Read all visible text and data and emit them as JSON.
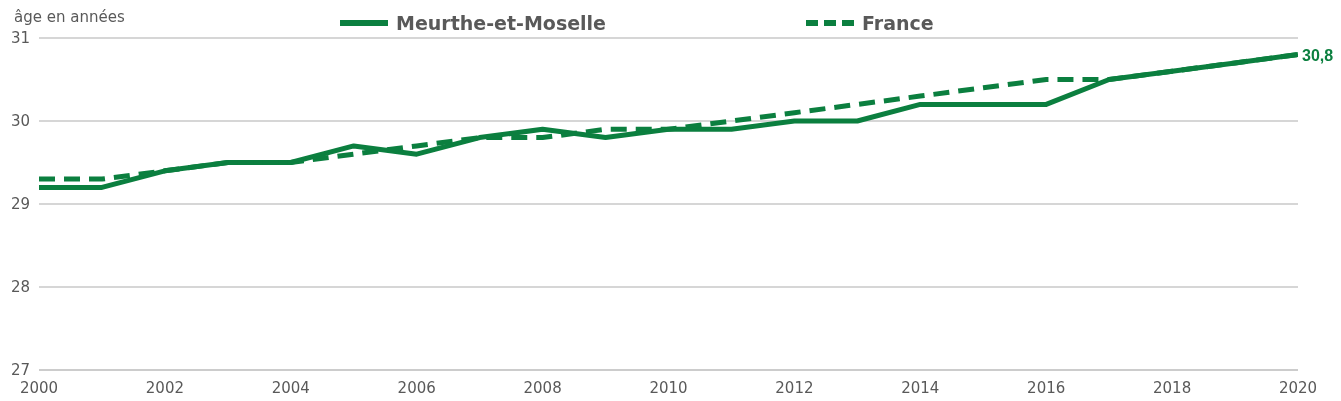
{
  "chart_data": {
    "type": "line",
    "ylabel": "âge en années",
    "x": [
      2000,
      2001,
      2002,
      2003,
      2004,
      2005,
      2006,
      2007,
      2008,
      2009,
      2010,
      2011,
      2012,
      2013,
      2014,
      2015,
      2016,
      2017,
      2018,
      2019,
      2020
    ],
    "xlim": [
      2000,
      2020
    ],
    "xticks": [
      2000,
      2002,
      2004,
      2006,
      2008,
      2010,
      2012,
      2014,
      2016,
      2018,
      2020
    ],
    "ylim": [
      27,
      31
    ],
    "yticks": [
      27,
      28,
      29,
      30,
      31
    ],
    "grid": "y",
    "legend": "top",
    "series": [
      {
        "name": "Meurthe-et-Moselle",
        "color": "#0b7f3f",
        "line_style": "solid",
        "values": [
          29.2,
          29.2,
          29.4,
          29.5,
          29.5,
          29.7,
          29.6,
          29.8,
          29.9,
          29.8,
          29.9,
          29.9,
          30.0,
          30.0,
          30.2,
          30.2,
          30.2,
          30.5,
          30.6,
          30.7,
          30.8
        ],
        "value_labels": [
          null,
          null,
          null,
          null,
          null,
          null,
          null,
          null,
          null,
          null,
          null,
          null,
          null,
          null,
          null,
          null,
          null,
          null,
          null,
          null,
          "30,8"
        ]
      },
      {
        "name": "France",
        "color": "#0b7f3f",
        "line_style": "dashed",
        "values": [
          29.3,
          29.3,
          29.4,
          29.5,
          29.5,
          29.6,
          29.7,
          29.8,
          29.8,
          29.9,
          29.9,
          30.0,
          30.1,
          30.2,
          30.3,
          30.4,
          30.5,
          30.5,
          30.6,
          30.7,
          30.8
        ]
      }
    ]
  }
}
